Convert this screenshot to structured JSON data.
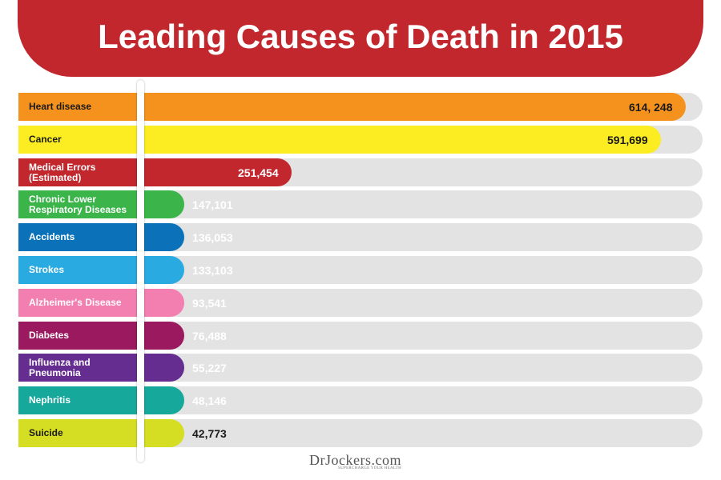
{
  "header": {
    "title": "Leading Causes of Death in 2015",
    "banner_color": "#c1272d"
  },
  "chart_data": {
    "type": "bar",
    "orientation": "horizontal",
    "title": "Leading Causes of Death in 2015",
    "xlabel": "",
    "ylabel": "",
    "xlim": [
      0,
      630000
    ],
    "grid": false,
    "legend": "none",
    "categories": [
      "Heart disease",
      "Cancer",
      "Medical Errors (Estimated)",
      "Chronic Lower Respiratory Diseases",
      "Accidents",
      "Strokes",
      "Alzheimer's Disease",
      "Diabetes",
      "Influenza and Pneumonia",
      "Nephritis",
      "Suicide"
    ],
    "category_labels": [
      "Heart disease",
      "Cancer",
      "Medical Errors\n(Estimated)",
      "Chronic Lower\nRespiratory Diseases",
      "Accidents",
      "Strokes",
      "Alzheimer's Disease",
      "Diabetes",
      "Influenza and\nPneumonia",
      "Nephritis",
      "Suicide"
    ],
    "values": [
      614248,
      591699,
      251454,
      147101,
      136053,
      133103,
      93541,
      76488,
      55227,
      48146,
      42773
    ],
    "value_labels": [
      "614, 248",
      "591,699",
      "251,454",
      "147,101",
      "136,053",
      "133,103",
      "93,541",
      "76,488",
      "55,227",
      "48,146",
      "42,773"
    ],
    "colors": [
      "#f5921e",
      "#fbed22",
      "#c1272d",
      "#3bb54a",
      "#0b72b9",
      "#29aae1",
      "#f37eb0",
      "#9b1a5f",
      "#662d91",
      "#17a89c",
      "#d6de23"
    ],
    "label_colors": [
      "#1a1a1a",
      "#1a1a1a",
      "#ffffff",
      "#ffffff",
      "#ffffff",
      "#ffffff",
      "#ffffff",
      "#ffffff",
      "#ffffff",
      "#ffffff",
      "#1a1a1a"
    ],
    "value_colors": [
      "#1a1a1a",
      "#1a1a1a",
      "#ffffff",
      "#ffffff",
      "#ffffff",
      "#ffffff",
      "#ffffff",
      "#ffffff",
      "#ffffff",
      "#ffffff",
      "#1a1a1a"
    ],
    "track_color": "#e3e3e3"
  },
  "footer": {
    "logo_text": "DrJockers.com",
    "tagline": "SUPERCHARGE YOUR HEALTH"
  }
}
